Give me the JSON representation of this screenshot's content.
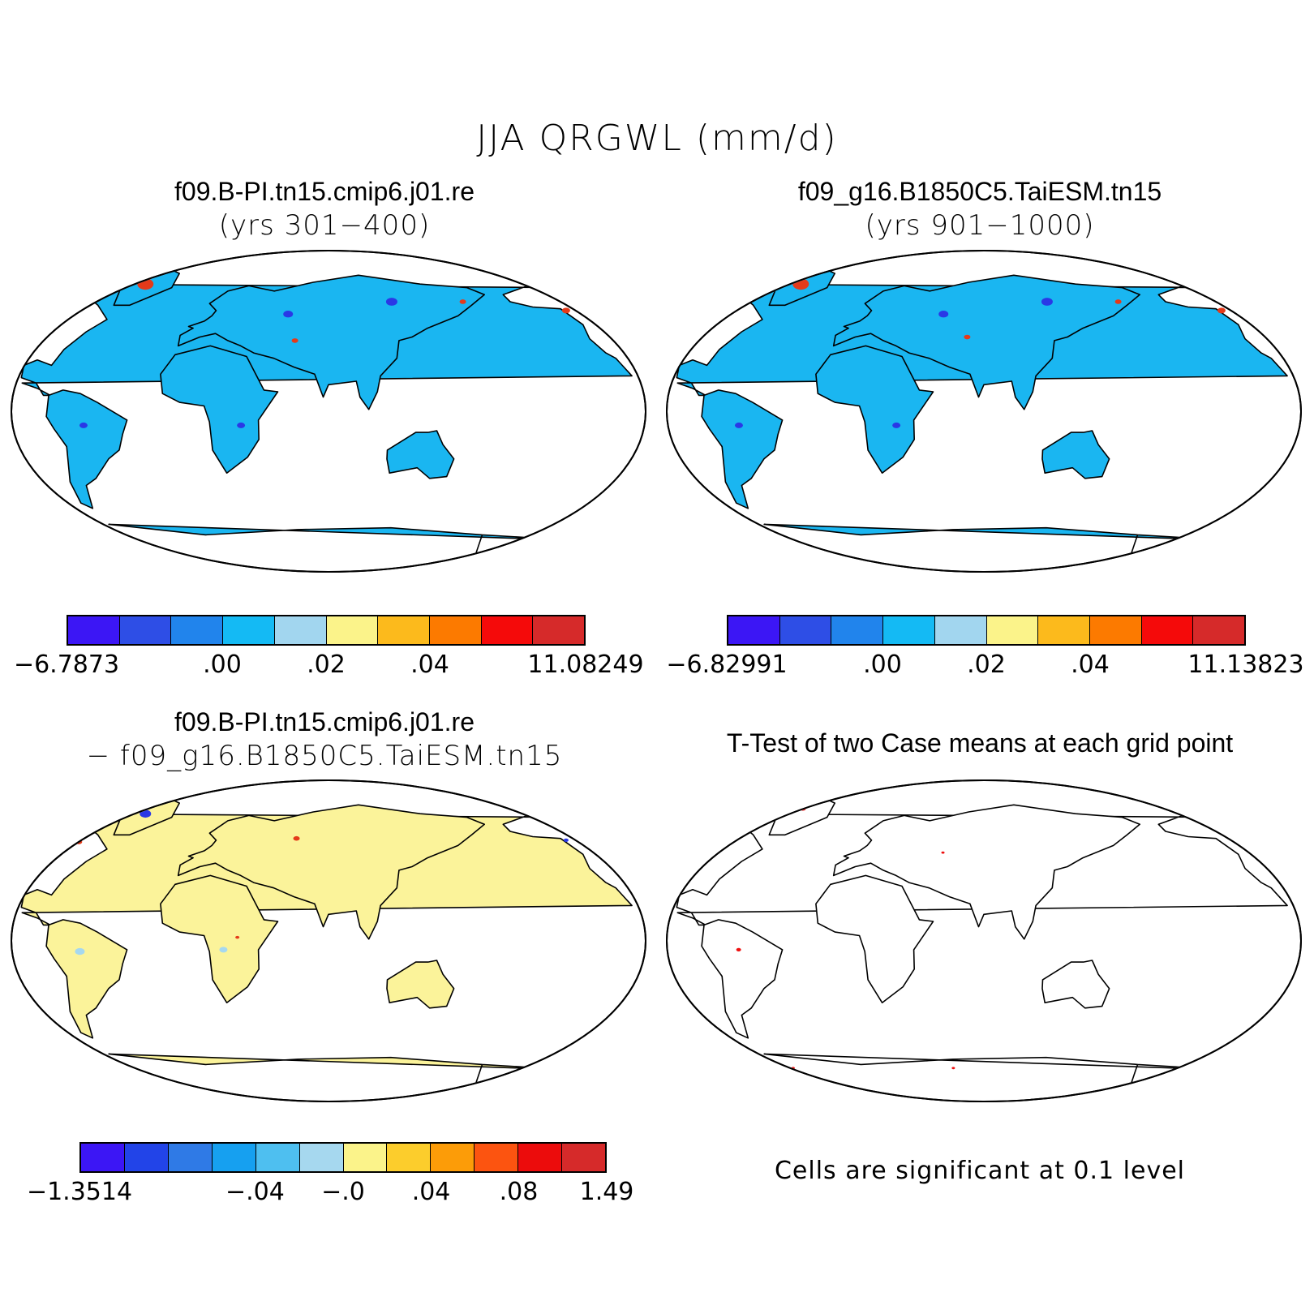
{
  "main_title": "JJA QRGWL (mm/d)",
  "panels": [
    {
      "title": "f09.B-PI.tn15.cmip6.j01.re",
      "subtitle": "(yrs 301−400)",
      "land_color": "#1ab6f1",
      "colorbar": {
        "colors": [
          "#3c16f5",
          "#2e4ee6",
          "#2184ec",
          "#14baf4",
          "#a2d6ef",
          "#fbf38a",
          "#fcba1c",
          "#fc7a00",
          "#f50a0a",
          "#d62a2a"
        ],
        "ticks": [
          "−6.7873",
          ".00",
          ".02",
          ".04",
          "11.08249"
        ]
      }
    },
    {
      "title": "f09_g16.B1850C5.TaiESM.tn15",
      "subtitle": "(yrs 901−1000)",
      "land_color": "#1ab6f1",
      "colorbar": {
        "colors": [
          "#3c16f5",
          "#2e4ee6",
          "#2184ec",
          "#14baf4",
          "#a2d6ef",
          "#fbf38a",
          "#fcba1c",
          "#fc7a00",
          "#f50a0a",
          "#d62a2a"
        ],
        "ticks": [
          "−6.82991",
          ".00",
          ".02",
          ".04",
          "11.13823"
        ]
      }
    },
    {
      "title": "f09.B-PI.tn15.cmip6.j01.re",
      "subtitle": "− f09_g16.B1850C5.TaiESM.tn15",
      "land_color": "#fbf39a",
      "colorbar": {
        "colors": [
          "#3c16f5",
          "#2244e8",
          "#2f7ae6",
          "#16a0f0",
          "#4ebff0",
          "#a6d8ef",
          "#fbf38a",
          "#fccd2c",
          "#fc9c08",
          "#fc5410",
          "#ec0c0c",
          "#d62a2a"
        ],
        "ticks": [
          "−1.3514",
          "−.04",
          "−.0",
          ".04",
          ".08",
          "1.49"
        ]
      }
    },
    {
      "title": "T-Test of two Case means at each grid point",
      "land_color": "#ffffff",
      "note": "Cells are significant at 0.1 level"
    }
  ]
}
